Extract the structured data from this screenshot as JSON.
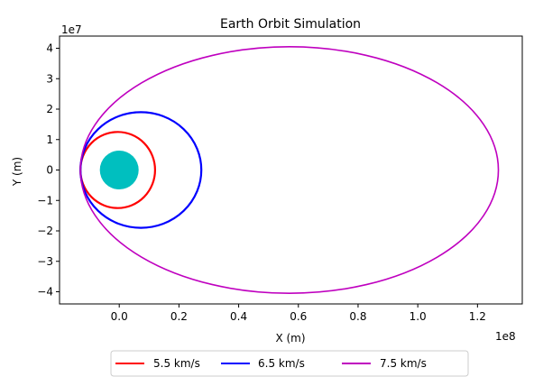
{
  "chart_data": {
    "type": "line",
    "title": "Earth Orbit Simulation",
    "xlabel": "X (m)",
    "ylabel": "Y (m)",
    "x_offset_text": "1e8",
    "y_offset_text": "1e7",
    "xlim": [
      -0.2,
      1.35
    ],
    "ylim": [
      -4.4,
      4.4
    ],
    "xticks": [
      0.0,
      0.2,
      0.4,
      0.6,
      0.8,
      1.0,
      1.2
    ],
    "xtick_labels": [
      "0.0",
      "0.2",
      "0.4",
      "0.6",
      "0.8",
      "1.0",
      "1.2"
    ],
    "yticks": [
      4,
      3,
      2,
      1,
      0,
      -1,
      -2,
      -3,
      -4
    ],
    "ytick_labels": [
      "4",
      "3",
      "2",
      "1",
      "0",
      "−1",
      "−2",
      "−3",
      "−4"
    ],
    "grid": false,
    "legend_position": "below",
    "earth": {
      "x": 0.0,
      "y": 0.0,
      "radius": 0.065,
      "color": "#00bfbf"
    },
    "series": [
      {
        "name": "5.5 km/s",
        "color": "#ff0000",
        "x_min": -0.13,
        "x_max": 0.12,
        "y_max": 1.25
      },
      {
        "name": "6.5 km/s",
        "color": "#0000ff",
        "x_min": -0.13,
        "x_max": 0.275,
        "y_max": 1.9
      },
      {
        "name": "7.5 km/s",
        "color": "#bf00bf",
        "x_min": -0.13,
        "x_max": 1.27,
        "y_max": 4.05
      }
    ]
  }
}
